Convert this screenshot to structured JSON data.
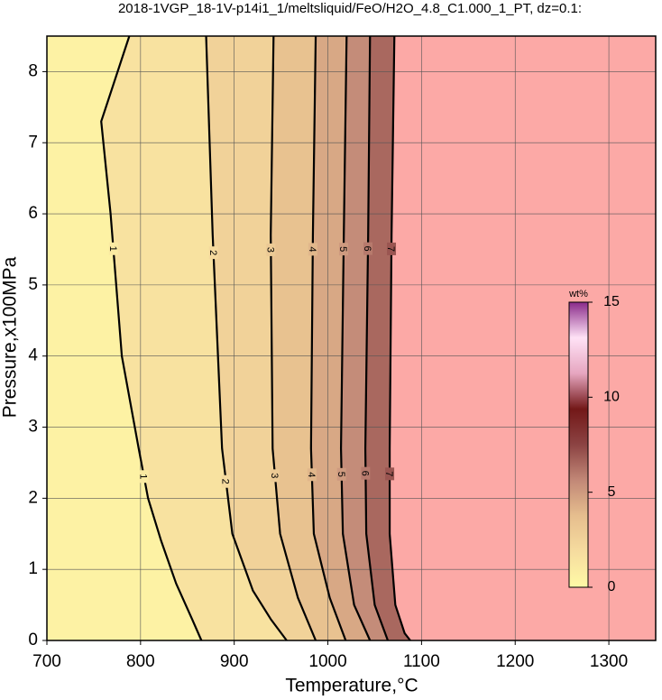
{
  "chart_data": {
    "type": "contour",
    "title": "2018-1VGP_18-1V-p14i1_1/meltsliquid/FeO/H2O_4.8_C1.000_1_PT, dz=0.1:",
    "x_label": "Temperature,°C",
    "y_label": "Pressure,x100MPa",
    "xlim": [
      700,
      1350
    ],
    "xticks": [
      700,
      800,
      900,
      1000,
      1100,
      1200,
      1300
    ],
    "ylim": [
      0,
      8.5
    ],
    "yticks": [
      0,
      1,
      2,
      3,
      4,
      5,
      6,
      7,
      8
    ],
    "grid": true,
    "nan_color": "#fca9a6",
    "contours": [
      {
        "level": 1,
        "temperature": [
          788,
          758,
          768,
          780,
          798,
          808,
          822,
          838,
          855,
          865
        ],
        "pressure": [
          8.5,
          7.3,
          6.0,
          4.0,
          2.7,
          2.0,
          1.4,
          0.8,
          0.3,
          0
        ]
      },
      {
        "level": 2,
        "temperature": [
          870,
          877,
          887,
          898,
          920,
          939,
          956
        ],
        "pressure": [
          8.5,
          5.7,
          2.7,
          1.5,
          0.7,
          0.3,
          0
        ]
      },
      {
        "level": 3,
        "temperature": [
          942,
          939,
          941,
          949,
          968,
          987
        ],
        "pressure": [
          8.5,
          5.7,
          2.7,
          1.5,
          0.6,
          0
        ]
      },
      {
        "level": 4,
        "temperature": [
          987,
          984,
          982,
          985,
          1002,
          1019
        ],
        "pressure": [
          8.5,
          5.7,
          2.7,
          1.5,
          0.6,
          0
        ]
      },
      {
        "level": 5,
        "temperature": [
          1020,
          1017,
          1014,
          1016,
          1028,
          1045
        ],
        "pressure": [
          8.5,
          5.7,
          2.7,
          1.5,
          0.5,
          0
        ]
      },
      {
        "level": 6,
        "temperature": [
          1045,
          1043,
          1040,
          1041,
          1050,
          1064
        ],
        "pressure": [
          8.5,
          5.7,
          2.7,
          1.5,
          0.5,
          0
        ]
      },
      {
        "level": 7,
        "temperature": [
          1071,
          1068,
          1066,
          1066,
          1072,
          1082,
          1088
        ],
        "pressure": [
          8.5,
          5.7,
          2.7,
          1.5,
          0.5,
          0.1,
          0
        ]
      }
    ],
    "colorbar": {
      "label": "wt%",
      "lim": [
        0,
        15
      ],
      "ticks": [
        0,
        5,
        10,
        15
      ],
      "colors": [
        "#fffaa6",
        "#f6dc9f",
        "#e6be8e",
        "#c28877",
        "#8c4343",
        "#731818",
        "#e6a6c0",
        "#ffe2f6",
        "#8a2a8a"
      ]
    }
  }
}
